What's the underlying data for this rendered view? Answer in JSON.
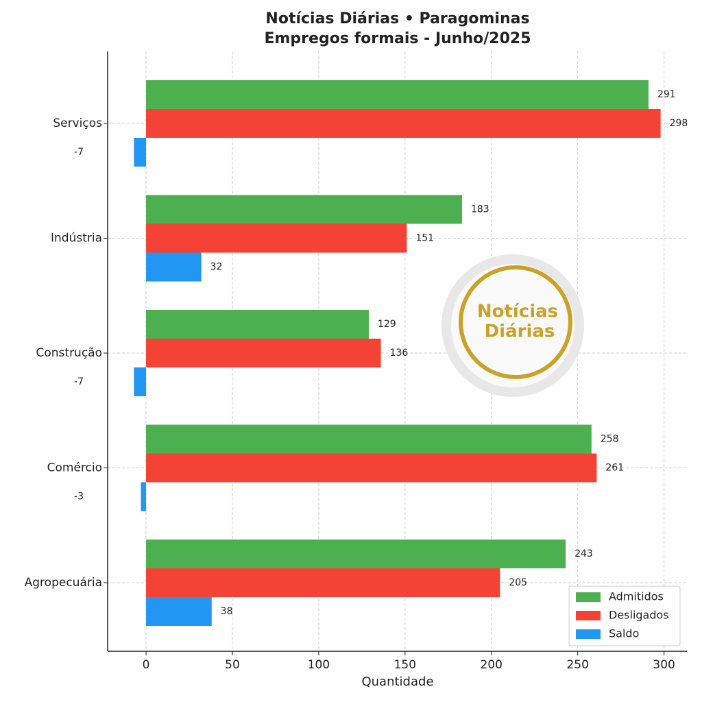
{
  "chart_data": {
    "type": "barh",
    "title": "Notícias Diárias • Paragominas",
    "subtitle": "Empregos formais - Junho/2025",
    "xlabel": "Quantidade",
    "categories": [
      "Serviços",
      "Indústria",
      "Construção",
      "Comércio",
      "Agropecuária"
    ],
    "series": [
      {
        "name": "Admitidos",
        "color": "#4caf50",
        "values": [
          291,
          183,
          129,
          258,
          243
        ]
      },
      {
        "name": "Desligados",
        "color": "#f44336",
        "values": [
          298,
          151,
          136,
          261,
          205
        ]
      },
      {
        "name": "Saldo",
        "color": "#2196f3",
        "values": [
          -7,
          32,
          -7,
          -3,
          38
        ]
      }
    ],
    "xlim": [
      -22.25,
      313.25
    ],
    "xticks": [
      0,
      50,
      100,
      150,
      200,
      250,
      300
    ],
    "grid": true,
    "legend": "lower right",
    "logo_text": [
      "Notícias",
      "Diárias"
    ]
  }
}
